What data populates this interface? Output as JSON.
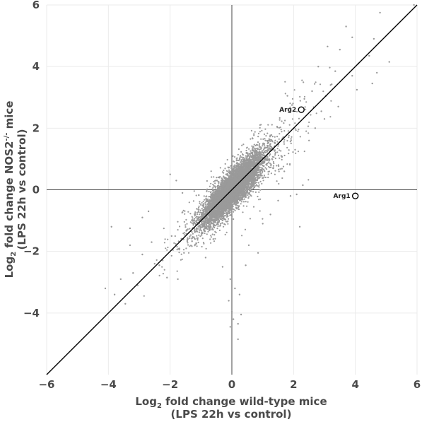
{
  "chart_data": {
    "type": "scatter",
    "title": "",
    "xlabel": {
      "line1": {
        "pre": "Log",
        "sub": "2",
        "post": " fold change wild-type mice"
      },
      "line2": "(LPS 22h vs control)"
    },
    "ylabel": {
      "line1": {
        "pre": "Log",
        "sub": "2",
        "mid": " fold change NOS2",
        "sup": "-/-",
        "post": " mice"
      },
      "line2": "(LPS 22h vs control)"
    },
    "xlim": [
      -6,
      6
    ],
    "ylim": [
      -6,
      6
    ],
    "x_ticks": [
      "−6",
      "−4",
      "−2",
      "0",
      "2",
      "4",
      "6"
    ],
    "y_ticks": [
      "−4",
      "−2",
      "0",
      "2",
      "4",
      "6"
    ],
    "x_tick_values": [
      -6,
      -4,
      -2,
      0,
      2,
      4,
      6
    ],
    "y_tick_values": [
      -4,
      -2,
      0,
      2,
      4,
      6
    ],
    "grid": true,
    "reference_line": {
      "type": "identity",
      "slope": 1,
      "intercept": 0
    },
    "point_color": "#9a9a9a",
    "line_color": "#000000",
    "cloud_description": {
      "approx_points": 7000,
      "center": [
        0,
        0
      ],
      "correlation": "strong positive, along y = x"
    },
    "highlighted_genes": [
      {
        "label": "Arg2",
        "x": 2.25,
        "y": 2.6
      },
      {
        "label": "Arg1",
        "x": 4.0,
        "y": -0.2
      }
    ],
    "series": [
      {
        "values": [
          [
            5.9,
            6.0
          ],
          [
            4.8,
            5.75
          ],
          [
            3.7,
            5.3
          ],
          [
            3.9,
            4.95
          ],
          [
            4.6,
            4.9
          ],
          [
            3.1,
            4.65
          ],
          [
            3.5,
            4.55
          ],
          [
            4.1,
            4.1
          ],
          [
            4.45,
            4.35
          ],
          [
            4.7,
            3.8
          ],
          [
            5.1,
            4.15
          ],
          [
            2.8,
            4.0
          ],
          [
            3.35,
            3.85
          ],
          [
            3.9,
            3.7
          ],
          [
            3.2,
            3.4
          ],
          [
            2.6,
            3.2
          ],
          [
            4.05,
            3.25
          ],
          [
            4.55,
            3.45
          ],
          [
            2.35,
            2.95
          ],
          [
            3.05,
            3.05
          ],
          [
            2.9,
            2.55
          ],
          [
            1.8,
            3.05
          ],
          [
            1.95,
            2.75
          ],
          [
            3.45,
            2.7
          ],
          [
            2.05,
            1.3
          ],
          [
            1.6,
            1.1
          ],
          [
            2.5,
            1.6
          ],
          [
            1.9,
            -0.2
          ],
          [
            2.1,
            -0.15
          ],
          [
            2.3,
            0.15
          ],
          [
            2.2,
            -1.2
          ],
          [
            1.7,
            0.6
          ],
          [
            2.7,
            2.0
          ],
          [
            3.0,
            2.3
          ],
          [
            -2.0,
            0.5
          ],
          [
            -1.8,
            0.3
          ],
          [
            -1.6,
            -0.1
          ],
          [
            -2.7,
            -0.7
          ],
          [
            -2.9,
            -0.9
          ],
          [
            -3.3,
            -1.25
          ],
          [
            -3.9,
            -1.2
          ],
          [
            -3.3,
            -1.8
          ],
          [
            -2.9,
            -2.1
          ],
          [
            -2.6,
            -1.7
          ],
          [
            -2.5,
            -2.4
          ],
          [
            -3.2,
            -2.7
          ],
          [
            -3.6,
            -2.9
          ],
          [
            -4.1,
            -3.2
          ],
          [
            -3.8,
            -3.4
          ],
          [
            -3.45,
            -3.7
          ],
          [
            -3.05,
            -3.1
          ],
          [
            -2.1,
            -2.85
          ],
          [
            -2.35,
            -2.45
          ],
          [
            -1.75,
            -2.9
          ],
          [
            -1.55,
            -2.05
          ],
          [
            -1.95,
            -1.5
          ],
          [
            -1.15,
            -1.75
          ],
          [
            -0.85,
            -2.2
          ],
          [
            -0.6,
            -1.6
          ],
          [
            -0.3,
            -2.5
          ],
          [
            -0.05,
            -2.9
          ],
          [
            0.1,
            -3.2
          ],
          [
            -0.1,
            -3.6
          ],
          [
            0.0,
            -3.95
          ],
          [
            0.05,
            -4.2
          ],
          [
            -0.05,
            -4.45
          ],
          [
            0.2,
            -4.35
          ],
          [
            0.2,
            -4.85
          ],
          [
            0.3,
            -4.05
          ],
          [
            0.25,
            -3.4
          ],
          [
            0.45,
            -2.45
          ],
          [
            0.55,
            -1.8
          ],
          [
            0.85,
            -2.05
          ],
          [
            1.0,
            -1.1
          ],
          [
            1.25,
            -0.8
          ],
          [
            1.5,
            -0.35
          ]
        ]
      }
    ]
  }
}
